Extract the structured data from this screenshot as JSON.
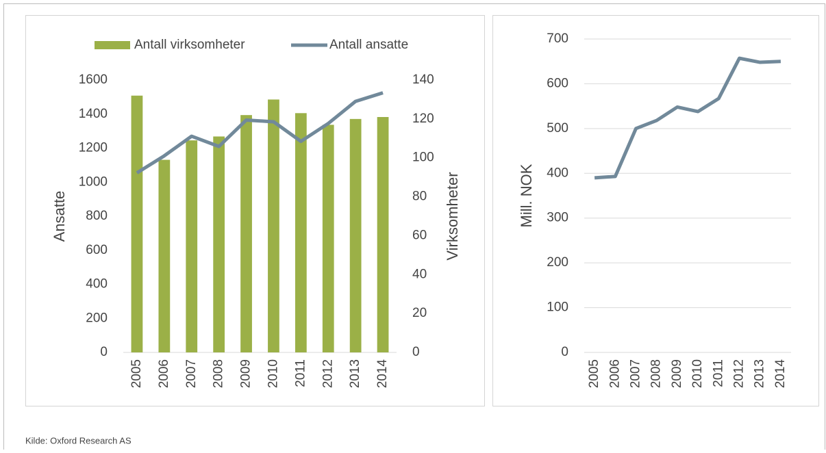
{
  "chart_data": [
    {
      "type": "combo",
      "categories": [
        "2005",
        "2006",
        "2007",
        "2008",
        "2009",
        "2010",
        "2011",
        "2012",
        "2013",
        "2014"
      ],
      "ylabel": "Ansatte",
      "y2label": "Virksomheter",
      "ylim": [
        0,
        1600
      ],
      "yticks": [
        0,
        200,
        400,
        600,
        800,
        1000,
        1200,
        1400,
        1600
      ],
      "y2lim": [
        0,
        140
      ],
      "y2ticks": [
        0,
        20,
        40,
        60,
        80,
        100,
        120,
        140
      ],
      "legend": "top",
      "series": [
        {
          "name": "Antall virksomheter",
          "type": "bar",
          "axis": "y2",
          "color": "#9bb047",
          "values": [
            132,
            99,
            109,
            111,
            122,
            130,
            123,
            117,
            120,
            121
          ]
        },
        {
          "name": "Antall ansatte",
          "type": "line",
          "color": "#71899a",
          "values": [
            1055,
            1155,
            1270,
            1210,
            1365,
            1355,
            1240,
            1345,
            1475,
            1525
          ]
        }
      ]
    },
    {
      "type": "line",
      "categories": [
        "2005",
        "2006",
        "2007",
        "2008",
        "2009",
        "2010",
        "2011",
        "2012",
        "2013",
        "2014"
      ],
      "ylabel": "Mill. NOK",
      "ylim": [
        0,
        700
      ],
      "yticks": [
        0,
        100,
        200,
        300,
        400,
        500,
        600,
        700
      ],
      "grid": true,
      "color": "#71899a",
      "values": [
        390,
        393,
        500,
        518,
        548,
        538,
        567,
        657,
        648,
        650
      ]
    }
  ],
  "source": "Kilde: Oxford Research AS"
}
